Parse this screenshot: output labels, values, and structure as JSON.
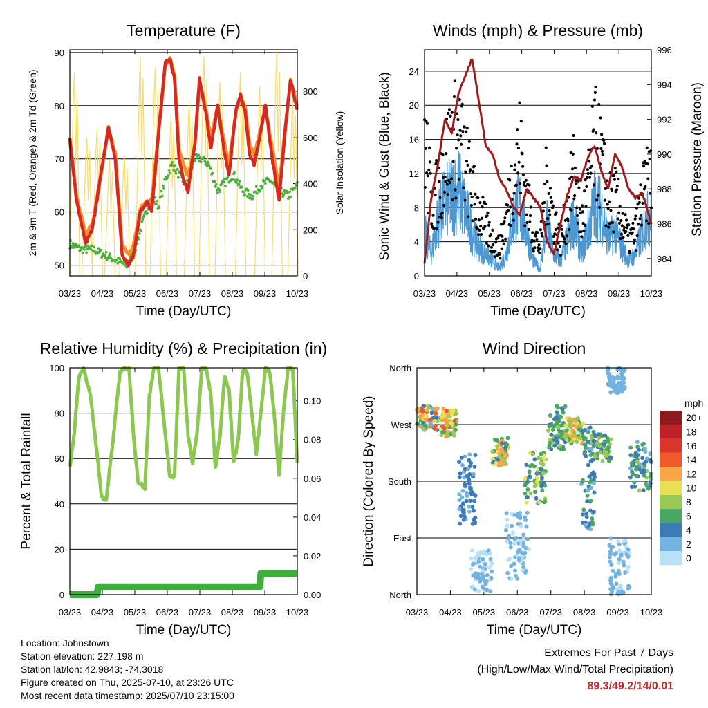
{
  "chart_data": [
    {
      "type": "line",
      "title": "Temperature (F)",
      "xlabel": "Time (Day/UTC)",
      "ylabel": "2m & 9m T (Red, Orange) & 2m Td (Green)",
      "y2label": "Solar Insolation (Yellow)",
      "x_ticks": [
        "03/23",
        "04/23",
        "05/23",
        "06/23",
        "07/23",
        "08/23",
        "09/23",
        "10/23"
      ],
      "ylim": [
        48,
        90.5
      ],
      "y_ticks": [
        50,
        60,
        70,
        80,
        90
      ],
      "y2lim": [
        0,
        980
      ],
      "y2_ticks": [
        0,
        200,
        400,
        600,
        800
      ],
      "grid": true,
      "colors": {
        "temp_2m": "#d42a20",
        "temp_9m": "#f7902c",
        "dewpoint_2m": "#4caf3c",
        "solar": "#f7dc6a"
      },
      "series": [
        {
          "key": "temp_2m",
          "x": [
            0,
            0.3,
            0.7,
            1.0,
            1.4,
            1.7,
            2.0,
            2.3,
            2.6,
            2.8,
            3.1,
            3.4,
            3.6,
            3.9,
            4.2,
            4.4,
            4.6,
            4.8,
            5.0,
            5.2,
            5.5,
            5.7,
            6.0,
            6.2,
            6.5,
            6.8,
            7.0,
            7.3,
            7.5,
            7.7,
            7.9,
            8.1,
            8.3,
            8.6,
            8.9,
            9.2,
            9.5,
            9.7,
            10.0
          ],
          "values": [
            74,
            62,
            54,
            57,
            68,
            76,
            70,
            52,
            50,
            52,
            60,
            62,
            60,
            75,
            88,
            89,
            85,
            70,
            66,
            64,
            73,
            85,
            78,
            72,
            80,
            71,
            67,
            79,
            82,
            79,
            71,
            69,
            73,
            80,
            70,
            62,
            77,
            85,
            79
          ]
        },
        {
          "key": "temp_9m",
          "x": [
            0,
            0.3,
            0.7,
            1.0,
            1.4,
            1.7,
            2.0,
            2.3,
            2.6,
            2.8,
            3.1,
            3.4,
            3.6,
            3.9,
            4.2,
            4.4,
            4.6,
            4.8,
            5.0,
            5.2,
            5.5,
            5.7,
            6.0,
            6.2,
            6.5,
            6.8,
            7.0,
            7.3,
            7.5,
            7.7,
            7.9,
            8.1,
            8.3,
            8.6,
            8.9,
            9.2,
            9.5,
            9.7,
            10.0
          ],
          "values": [
            73,
            62,
            55,
            57,
            67,
            75,
            70,
            53,
            51,
            53,
            60,
            61,
            61,
            74,
            87,
            88,
            85,
            71,
            68,
            66,
            72,
            84,
            78,
            73,
            79,
            72,
            68,
            78,
            81,
            79,
            72,
            70,
            73,
            79,
            71,
            64,
            76,
            84,
            79
          ]
        },
        {
          "key": "dewpoint_2m",
          "x": [
            0,
            0.5,
            1.0,
            1.5,
            2.0,
            2.5,
            2.8,
            3.2,
            3.6,
            3.9,
            4.2,
            4.5,
            4.8,
            5.1,
            5.4,
            5.8,
            6.1,
            6.5,
            6.9,
            7.2,
            7.6,
            8.0,
            8.4,
            8.8,
            9.2,
            9.6,
            10.0
          ],
          "values": [
            54,
            53,
            53,
            52,
            51,
            50,
            52,
            58,
            63,
            61,
            66,
            69,
            67,
            65,
            70,
            70,
            69,
            64,
            66,
            67,
            64,
            63,
            65,
            66,
            64,
            63,
            65
          ]
        },
        {
          "key": "solar",
          "x": [
            0.2,
            0.75,
            1.2,
            1.75,
            2.4,
            3.1,
            3.75,
            4.45,
            5.25,
            5.9,
            6.6,
            7.5,
            8.35,
            9.1,
            9.8
          ],
          "values": [
            880,
            600,
            640,
            500,
            520,
            950,
            900,
            700,
            760,
            950,
            840,
            880,
            820,
            980,
            770
          ]
        }
      ]
    },
    {
      "type": "line",
      "title": "Winds (mph) & Pressure (mb)",
      "xlabel": "Time (Day/UTC)",
      "ylabel": "Sonic Wind & Gust (Blue, Black)",
      "y2label": "Station Pressure (Maroon)",
      "x_ticks": [
        "03/23",
        "04/23",
        "05/23",
        "06/23",
        "07/23",
        "08/23",
        "09/23",
        "10/23"
      ],
      "ylim": [
        0,
        26.5
      ],
      "y_ticks": [
        0,
        4,
        8,
        12,
        16,
        20,
        24
      ],
      "y2lim": [
        983,
        996
      ],
      "y2_ticks": [
        984,
        986,
        988,
        990,
        992,
        994,
        996
      ],
      "grid": true,
      "colors": {
        "wind": "#4a98d4",
        "gust": "#000000",
        "pressure": "#9e1b1b"
      },
      "series": [
        {
          "key": "wind",
          "x": [
            0,
            0.3,
            0.6,
            0.9,
            1.2,
            1.5,
            1.8,
            2.1,
            2.4,
            2.7,
            3.0,
            3.3,
            3.6,
            3.9,
            4.2,
            4.5,
            4.8,
            5.1,
            5.4,
            5.7,
            6.0,
            6.3,
            6.6,
            6.9,
            7.2,
            7.5,
            7.8,
            8.1,
            8.4,
            8.7,
            9.0,
            9.3,
            9.6,
            10.0
          ],
          "values": [
            6,
            3,
            8,
            10,
            11,
            12,
            9,
            6,
            4,
            3,
            2,
            1,
            3,
            8,
            10,
            6,
            2,
            1,
            7,
            3,
            2,
            5,
            8,
            3,
            6,
            10,
            9,
            5,
            6,
            4,
            2,
            3,
            6,
            9
          ]
        },
        {
          "key": "gust",
          "x": [
            0,
            0.3,
            0.6,
            0.9,
            1.2,
            1.5,
            1.8,
            2.1,
            2.4,
            2.7,
            3.0,
            3.3,
            3.6,
            3.9,
            4.2,
            4.5,
            4.8,
            5.1,
            5.4,
            5.7,
            6.0,
            6.3,
            6.6,
            6.9,
            7.2,
            7.5,
            7.8,
            8.1,
            8.4,
            8.7,
            9.0,
            9.3,
            9.6,
            10.0
          ],
          "values": [
            20,
            10,
            12,
            16,
            19,
            20,
            16,
            12,
            9,
            7,
            5,
            4,
            8,
            14,
            18,
            11,
            6,
            4,
            14,
            8,
            5,
            9,
            15,
            7,
            12,
            19,
            16,
            10,
            11,
            8,
            5,
            6,
            11,
            14
          ]
        },
        {
          "key": "pressure",
          "x": [
            0,
            0.3,
            0.6,
            0.9,
            1.2,
            1.5,
            1.8,
            2.1,
            2.4,
            2.7,
            3.0,
            3.3,
            3.6,
            3.9,
            4.2,
            4.5,
            4.8,
            5.1,
            5.4,
            5.7,
            6.0,
            6.3,
            6.6,
            6.9,
            7.2,
            7.5,
            7.8,
            8.1,
            8.4,
            8.7,
            9.0,
            9.3,
            9.6,
            10.0
          ],
          "values": [
            983.7,
            987.5,
            989.5,
            992.0,
            991.2,
            993.5,
            994.5,
            995.5,
            993.0,
            990.5,
            990.0,
            988.6,
            988.0,
            987.0,
            986.5,
            988.0,
            987.5,
            987.0,
            985.0,
            984.2,
            986.0,
            987.7,
            988.7,
            988.5,
            989.8,
            990.5,
            989.0,
            988.0,
            990.0,
            989.3,
            988.0,
            987.5,
            987.8,
            986.0
          ]
        }
      ]
    },
    {
      "type": "line",
      "title": "Relative Humidity (%) & Precipitation (in)",
      "xlabel": "Time (Day/UTC)",
      "ylabel": "Percent & Total Rainfall",
      "x_ticks": [
        "03/23",
        "04/23",
        "05/23",
        "06/23",
        "07/23",
        "08/23",
        "09/23",
        "10/23"
      ],
      "ylim": [
        0,
        100
      ],
      "y_ticks": [
        0,
        20,
        40,
        60,
        80,
        100
      ],
      "y2lim": [
        0,
        0.117
      ],
      "y2_ticks": [
        "0.00",
        "0.02",
        "0.04",
        "0.06",
        "0.08",
        "0.10"
      ],
      "grid": true,
      "colors": {
        "rh": "#8cc850",
        "precip": "#3fae3c"
      },
      "series": [
        {
          "key": "rh",
          "x": [
            0,
            0.2,
            0.4,
            0.6,
            0.9,
            1.2,
            1.4,
            1.6,
            1.9,
            2.2,
            2.4,
            2.6,
            2.8,
            3.0,
            3.3,
            3.5,
            3.7,
            3.9,
            4.1,
            4.4,
            4.6,
            4.8,
            5.0,
            5.2,
            5.4,
            5.6,
            5.8,
            6.0,
            6.2,
            6.4,
            6.6,
            6.8,
            7.0,
            7.2,
            7.4,
            7.6,
            7.8,
            8.0,
            8.2,
            8.4,
            8.6,
            8.8,
            9.0,
            9.2,
            9.4,
            9.6,
            9.8,
            10.0
          ],
          "values": [
            56,
            72,
            96,
            100,
            88,
            62,
            43,
            42,
            68,
            98,
            100,
            100,
            70,
            50,
            47,
            88,
            100,
            100,
            80,
            52,
            52,
            100,
            100,
            70,
            58,
            72,
            100,
            100,
            88,
            56,
            70,
            96,
            90,
            58,
            68,
            99,
            98,
            80,
            62,
            80,
            100,
            98,
            78,
            52,
            82,
            100,
            100,
            58
          ]
        },
        {
          "key": "precip",
          "x": [
            0,
            1.2,
            1.25,
            8.35,
            8.4,
            10.0
          ],
          "values": [
            0.0,
            0.0,
            0.004,
            0.004,
            0.011,
            0.011
          ]
        }
      ]
    },
    {
      "type": "scatter",
      "title": "Wind Direction",
      "xlabel": "Time (Day/UTC)",
      "ylabel": "Direction (Colored By Speed)",
      "x_ticks": [
        "03/23",
        "04/23",
        "05/23",
        "06/23",
        "07/23",
        "08/23",
        "09/23",
        "10/23"
      ],
      "y_ticks": [
        "North",
        "East",
        "South",
        "West",
        "North"
      ],
      "ylim": [
        0,
        360
      ],
      "grid": true,
      "legend": {
        "title": "mph",
        "placement": "right",
        "levels": [
          "20+",
          "18",
          "16",
          "14",
          "12",
          "10",
          "8",
          "6",
          "4",
          "2",
          "0"
        ],
        "colors": [
          "#8e1a1e",
          "#be2026",
          "#d9352a",
          "#f05a2a",
          "#f8a645",
          "#e8e156",
          "#97c954",
          "#4aa663",
          "#3c7ab8",
          "#74b2e0",
          "#b8e1f7"
        ]
      },
      "clusters": [
        {
          "x": [
            0.0,
            0.9
          ],
          "dir": [
            260,
            300
          ],
          "speed": [
            2,
            14
          ]
        },
        {
          "x": [
            1.0,
            1.7
          ],
          "dir": [
            250,
            295
          ],
          "speed": [
            6,
            14
          ]
        },
        {
          "x": [
            1.8,
            2.5
          ],
          "dir": [
            110,
            230
          ],
          "speed": [
            2,
            5
          ]
        },
        {
          "x": [
            2.3,
            3.2
          ],
          "dir": [
            5,
            70
          ],
          "speed": [
            0,
            3
          ]
        },
        {
          "x": [
            3.2,
            3.9
          ],
          "dir": [
            205,
            250
          ],
          "speed": [
            4,
            13
          ]
        },
        {
          "x": [
            3.8,
            4.8
          ],
          "dir": [
            20,
            130
          ],
          "speed": [
            0,
            3
          ]
        },
        {
          "x": [
            4.6,
            5.5
          ],
          "dir": [
            145,
            225
          ],
          "speed": [
            4,
            10
          ]
        },
        {
          "x": [
            5.6,
            6.4
          ],
          "dir": [
            230,
            300
          ],
          "speed": [
            3,
            8
          ]
        },
        {
          "x": [
            6.3,
            7.1
          ],
          "dir": [
            240,
            280
          ],
          "speed": [
            5,
            13
          ]
        },
        {
          "x": [
            7.0,
            7.6
          ],
          "dir": [
            100,
            270
          ],
          "speed": [
            2,
            6
          ]
        },
        {
          "x": [
            7.4,
            8.3
          ],
          "dir": [
            210,
            255
          ],
          "speed": [
            4,
            9
          ]
        },
        {
          "x": [
            8.2,
            9.1
          ],
          "dir": [
            0,
            90
          ],
          "speed": [
            0,
            3
          ]
        },
        {
          "x": [
            8.1,
            8.9
          ],
          "dir": [
            320,
            360
          ],
          "speed": [
            1,
            2
          ]
        },
        {
          "x": [
            9.1,
            10.0
          ],
          "dir": [
            165,
            245
          ],
          "speed": [
            2,
            8
          ]
        }
      ]
    }
  ],
  "station_info": {
    "location": "Location: Johnstown",
    "elevation": "Station elevation: 227.198 m",
    "latlon": "Station lat/lon: 42.9843; -74.3018",
    "created": "Figure created on Thu, 2025-07-10, at 23:26 UTC",
    "timestamp": "Most recent data timestamp: 2025/07/10 23:15:00"
  },
  "extremes": {
    "title": "Extremes For Past 7 Days",
    "subtitle": "(High/Low/Max Wind/Total Precipitation)",
    "values": "89.3/49.2/14/0.01"
  }
}
